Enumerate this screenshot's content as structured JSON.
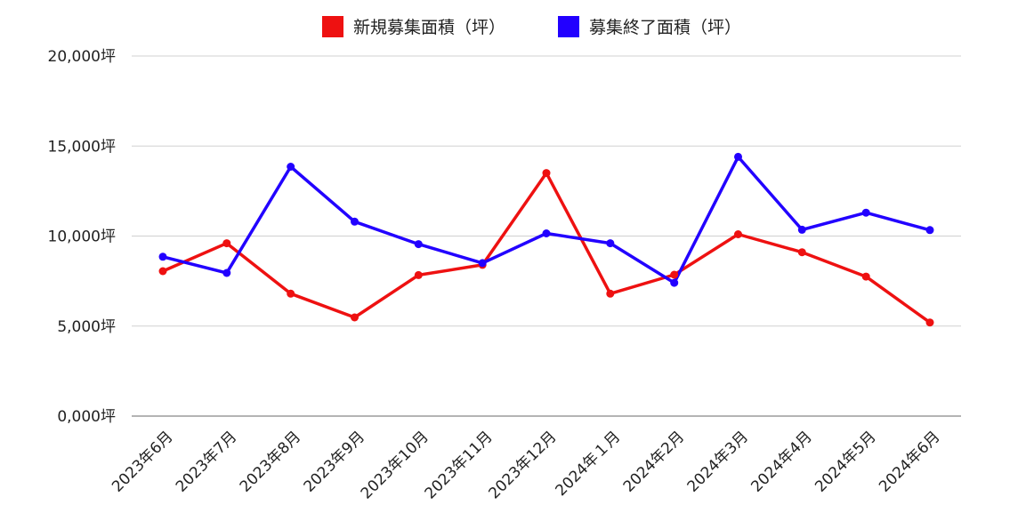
{
  "chart_data": {
    "type": "line",
    "categories": [
      "2023年6月",
      "2023年7月",
      "2023年8月",
      "2023年9月",
      "2023年10月",
      "2023年11月",
      "2023年12月",
      "2024年１月",
      "2024年2月",
      "2024年3月",
      "2024年4月",
      "2024年5月",
      "2024年6月"
    ],
    "series": [
      {
        "name": "新規募集面積（坪）",
        "color": "#ee1111",
        "values": [
          8050,
          9600,
          6800,
          5480,
          7830,
          8400,
          13500,
          6800,
          7850,
          10100,
          9100,
          7750,
          5200
        ]
      },
      {
        "name": "募集終了面積（坪）",
        "color": "#2200ff",
        "values": [
          8850,
          7950,
          13850,
          10800,
          9550,
          8500,
          10150,
          9600,
          7400,
          14400,
          10350,
          11300,
          10330
        ]
      }
    ],
    "ylim": [
      0,
      20000
    ],
    "yticks": [
      "0,000坪",
      "5,000坪",
      "10,000坪",
      "15,000坪",
      "20,000坪"
    ],
    "ytick_values": [
      0,
      5000,
      10000,
      15000,
      20000
    ],
    "grid": true,
    "legend_position": "top"
  }
}
